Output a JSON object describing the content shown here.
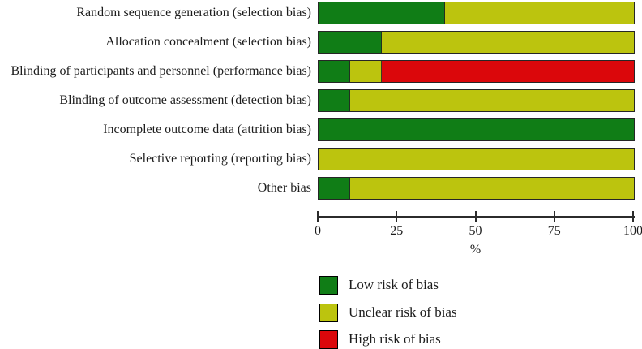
{
  "chart_data": {
    "type": "bar",
    "orientation": "horizontal",
    "stacked": true,
    "title": "",
    "xlabel": "%",
    "ylabel": "",
    "xlim": [
      0,
      100
    ],
    "x_ticks": [
      0,
      25,
      50,
      75,
      100
    ],
    "grid": false,
    "legend_position": "bottom-left",
    "categories": [
      "Random sequence generation (selection bias)",
      "Allocation concealment (selection bias)",
      "Blinding of participants and personnel (performance bias)",
      "Blinding of outcome assessment (detection bias)",
      "Incomplete outcome data (attrition bias)",
      "Selective reporting (reporting bias)",
      "Other bias"
    ],
    "series": [
      {
        "name": "Low risk of bias",
        "color": "#107D16",
        "values": [
          40,
          20,
          10,
          10,
          100,
          0,
          10
        ]
      },
      {
        "name": "Unclear risk of bias",
        "color": "#BCC40E",
        "values": [
          60,
          80,
          10,
          90,
          0,
          100,
          90
        ]
      },
      {
        "name": "High risk of bias",
        "color": "#DB070B",
        "values": [
          0,
          0,
          80,
          0,
          0,
          0,
          0
        ]
      }
    ]
  },
  "colors": {
    "bar_border": "#262626",
    "axis": "#2b2b2b",
    "text": "#1c1c1c",
    "background": "#ffffff"
  }
}
